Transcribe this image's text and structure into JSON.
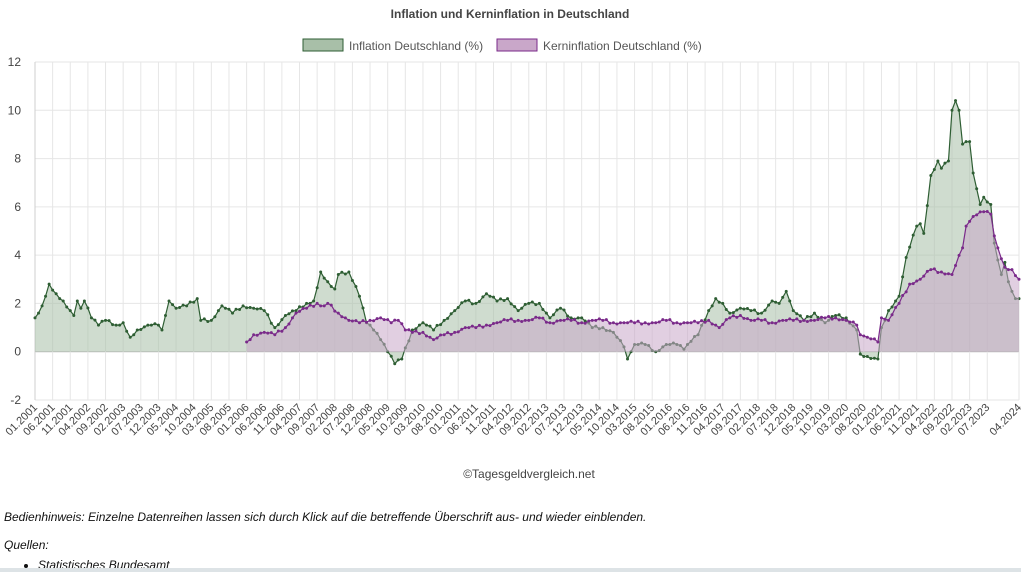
{
  "page": {
    "hint": "Bedienhinweis: Einzelne Datenreihen lassen sich durch Klick auf die betreffende Überschrift aus- und wieder einblenden.",
    "sources_label": "Quellen:",
    "sources": [
      "Statistisches Bundesamt"
    ]
  },
  "chart_data": {
    "type": "area",
    "title": "Inflation und Kerninflation in Deutschland",
    "credit": "©Tagesgeldvergleich.net",
    "legend_position": "top",
    "grid": true,
    "ylim": [
      -2,
      12
    ],
    "yticks": [
      "12",
      "10",
      "8",
      "6",
      "4",
      "2",
      "0",
      "-2"
    ],
    "x_start": "2001-01",
    "x_end": "2024-04",
    "xticks": [
      "01.2001",
      "06.2001",
      "11.2001",
      "04.2002",
      "09.2002",
      "02.2003",
      "07.2003",
      "12.2003",
      "05.2004",
      "10.2004",
      "03.2005",
      "08.2005",
      "01.2006",
      "06.2006",
      "11.2006",
      "04.2007",
      "09.2007",
      "02.2008",
      "07.2008",
      "12.2008",
      "05.2009",
      "10.2009",
      "03.2010",
      "08.2010",
      "01.2011",
      "06.2011",
      "11.2011",
      "04.2012",
      "09.2012",
      "02.2013",
      "07.2013",
      "12.2013",
      "05.2014",
      "10.2014",
      "03.2015",
      "08.2015",
      "01.2016",
      "06.2016",
      "11.2016",
      "04.2017",
      "09.2017",
      "02.2018",
      "07.2018",
      "12.2018",
      "05.2019",
      "10.2019",
      "03.2020",
      "08.2020",
      "01.2021",
      "06.2021",
      "11.2021",
      "04.2022",
      "09.2022",
      "02.2023",
      "07.2023",
      "04.2024"
    ],
    "series": [
      {
        "name": "Inflation Deutschland (%)",
        "line_color": "#2e5e33",
        "fill_color": "#a8bfa8",
        "knots": [
          [
            "2001-01",
            1.4
          ],
          [
            "2001-03",
            1.9
          ],
          [
            "2001-05",
            2.8
          ],
          [
            "2001-07",
            2.4
          ],
          [
            "2001-09",
            2.1
          ],
          [
            "2001-11",
            1.7
          ],
          [
            "2001-12",
            1.5
          ],
          [
            "2002-01",
            2.1
          ],
          [
            "2002-02",
            1.8
          ],
          [
            "2002-03",
            2.1
          ],
          [
            "2002-05",
            1.4
          ],
          [
            "2002-07",
            1.1
          ],
          [
            "2002-09",
            1.3
          ],
          [
            "2002-12",
            1.1
          ],
          [
            "2003-02",
            1.2
          ],
          [
            "2003-04",
            0.6
          ],
          [
            "2003-06",
            0.9
          ],
          [
            "2003-09",
            1.1
          ],
          [
            "2003-12",
            1.1
          ],
          [
            "2004-01",
            0.9
          ],
          [
            "2004-03",
            2.1
          ],
          [
            "2004-05",
            1.8
          ],
          [
            "2004-08",
            1.9
          ],
          [
            "2004-11",
            2.2
          ],
          [
            "2004-12",
            1.3
          ],
          [
            "2005-03",
            1.3
          ],
          [
            "2005-06",
            1.9
          ],
          [
            "2005-09",
            1.6
          ],
          [
            "2005-12",
            1.9
          ],
          [
            "2006-03",
            1.8
          ],
          [
            "2006-06",
            1.7
          ],
          [
            "2006-09",
            1.0
          ],
          [
            "2006-12",
            1.5
          ],
          [
            "2007-03",
            1.7
          ],
          [
            "2007-06",
            2.0
          ],
          [
            "2007-08",
            2.1
          ],
          [
            "2007-10",
            3.3
          ],
          [
            "2007-12",
            2.9
          ],
          [
            "2008-02",
            2.6
          ],
          [
            "2008-03",
            3.2
          ],
          [
            "2008-06",
            3.3
          ],
          [
            "2008-08",
            2.7
          ],
          [
            "2008-09",
            2.3
          ],
          [
            "2008-11",
            1.2
          ],
          [
            "2008-12",
            1.1
          ],
          [
            "2009-03",
            0.5
          ],
          [
            "2009-05",
            0.0
          ],
          [
            "2009-07",
            -0.5
          ],
          [
            "2009-09",
            -0.3
          ],
          [
            "2009-12",
            0.9
          ],
          [
            "2010-03",
            1.2
          ],
          [
            "2010-06",
            0.9
          ],
          [
            "2010-09",
            1.3
          ],
          [
            "2010-12",
            1.7
          ],
          [
            "2011-03",
            2.1
          ],
          [
            "2011-06",
            2.0
          ],
          [
            "2011-09",
            2.4
          ],
          [
            "2011-12",
            2.1
          ],
          [
            "2012-03",
            2.2
          ],
          [
            "2012-06",
            1.7
          ],
          [
            "2012-09",
            2.0
          ],
          [
            "2012-12",
            2.0
          ],
          [
            "2013-03",
            1.4
          ],
          [
            "2013-06",
            1.8
          ],
          [
            "2013-09",
            1.4
          ],
          [
            "2013-12",
            1.4
          ],
          [
            "2014-03",
            1.0
          ],
          [
            "2014-06",
            1.0
          ],
          [
            "2014-09",
            0.8
          ],
          [
            "2014-12",
            0.2
          ],
          [
            "2015-01",
            -0.3
          ],
          [
            "2015-03",
            0.3
          ],
          [
            "2015-06",
            0.3
          ],
          [
            "2015-09",
            0.0
          ],
          [
            "2015-12",
            0.3
          ],
          [
            "2016-03",
            0.3
          ],
          [
            "2016-05",
            0.1
          ],
          [
            "2016-06",
            0.3
          ],
          [
            "2016-09",
            0.7
          ],
          [
            "2016-12",
            1.7
          ],
          [
            "2017-02",
            2.2
          ],
          [
            "2017-04",
            2.0
          ],
          [
            "2017-06",
            1.6
          ],
          [
            "2017-09",
            1.8
          ],
          [
            "2017-12",
            1.7
          ],
          [
            "2018-03",
            1.6
          ],
          [
            "2018-06",
            2.1
          ],
          [
            "2018-08",
            2.0
          ],
          [
            "2018-10",
            2.5
          ],
          [
            "2018-12",
            1.7
          ],
          [
            "2019-03",
            1.3
          ],
          [
            "2019-06",
            1.6
          ],
          [
            "2019-09",
            1.2
          ],
          [
            "2019-12",
            1.5
          ],
          [
            "2020-03",
            1.4
          ],
          [
            "2020-06",
            0.9
          ],
          [
            "2020-07",
            -0.1
          ],
          [
            "2020-09",
            -0.2
          ],
          [
            "2020-12",
            -0.3
          ],
          [
            "2021-01",
            1.0
          ],
          [
            "2021-03",
            1.7
          ],
          [
            "2021-06",
            2.3
          ],
          [
            "2021-08",
            3.9
          ],
          [
            "2021-11",
            5.2
          ],
          [
            "2021-12",
            5.3
          ],
          [
            "2022-01",
            4.9
          ],
          [
            "2022-03",
            7.3
          ],
          [
            "2022-05",
            7.9
          ],
          [
            "2022-06",
            7.6
          ],
          [
            "2022-08",
            7.9
          ],
          [
            "2022-09",
            10.0
          ],
          [
            "2022-10",
            10.4
          ],
          [
            "2022-11",
            10.0
          ],
          [
            "2022-12",
            8.6
          ],
          [
            "2023-01",
            8.7
          ],
          [
            "2023-02",
            8.7
          ],
          [
            "2023-03",
            7.4
          ],
          [
            "2023-05",
            6.1
          ],
          [
            "2023-06",
            6.4
          ],
          [
            "2023-07",
            6.2
          ],
          [
            "2023-08",
            6.1
          ],
          [
            "2023-09",
            4.5
          ],
          [
            "2023-10",
            3.8
          ],
          [
            "2023-11",
            3.2
          ],
          [
            "2023-12",
            3.7
          ],
          [
            "2024-01",
            2.9
          ],
          [
            "2024-02",
            2.5
          ],
          [
            "2024-03",
            2.2
          ],
          [
            "2024-04",
            2.2
          ]
        ]
      },
      {
        "name": "Kerninflation Deutschland (%)",
        "line_color": "#7a2a8a",
        "fill_color": "#c9a7c9",
        "knots": [
          [
            "2006-01",
            0.4
          ],
          [
            "2006-03",
            0.7
          ],
          [
            "2006-06",
            0.8
          ],
          [
            "2006-09",
            0.7
          ],
          [
            "2006-12",
            1.0
          ],
          [
            "2007-03",
            1.6
          ],
          [
            "2007-06",
            1.8
          ],
          [
            "2007-09",
            2.0
          ],
          [
            "2007-11",
            1.9
          ],
          [
            "2007-12",
            2.0
          ],
          [
            "2008-03",
            1.6
          ],
          [
            "2008-06",
            1.3
          ],
          [
            "2008-09",
            1.2
          ],
          [
            "2008-12",
            1.3
          ],
          [
            "2009-03",
            1.4
          ],
          [
            "2009-06",
            1.2
          ],
          [
            "2009-08",
            1.3
          ],
          [
            "2009-10",
            0.9
          ],
          [
            "2009-12",
            0.8
          ],
          [
            "2010-03",
            0.8
          ],
          [
            "2010-06",
            0.5
          ],
          [
            "2010-09",
            0.7
          ],
          [
            "2010-12",
            0.8
          ],
          [
            "2011-03",
            1.0
          ],
          [
            "2011-06",
            1.0
          ],
          [
            "2011-09",
            1.1
          ],
          [
            "2011-12",
            1.2
          ],
          [
            "2012-03",
            1.3
          ],
          [
            "2012-06",
            1.3
          ],
          [
            "2012-09",
            1.3
          ],
          [
            "2012-12",
            1.4
          ],
          [
            "2013-03",
            1.2
          ],
          [
            "2013-06",
            1.3
          ],
          [
            "2013-09",
            1.3
          ],
          [
            "2013-12",
            1.2
          ],
          [
            "2014-03",
            1.3
          ],
          [
            "2014-06",
            1.3
          ],
          [
            "2014-09",
            1.2
          ],
          [
            "2014-12",
            1.2
          ],
          [
            "2015-03",
            1.2
          ],
          [
            "2015-06",
            1.2
          ],
          [
            "2015-09",
            1.2
          ],
          [
            "2015-12",
            1.3
          ],
          [
            "2016-03",
            1.2
          ],
          [
            "2016-06",
            1.2
          ],
          [
            "2016-09",
            1.2
          ],
          [
            "2016-12",
            1.3
          ],
          [
            "2017-03",
            1.0
          ],
          [
            "2017-06",
            1.4
          ],
          [
            "2017-09",
            1.5
          ],
          [
            "2017-12",
            1.3
          ],
          [
            "2018-03",
            1.3
          ],
          [
            "2018-06",
            1.2
          ],
          [
            "2018-09",
            1.3
          ],
          [
            "2018-12",
            1.3
          ],
          [
            "2019-03",
            1.3
          ],
          [
            "2019-06",
            1.3
          ],
          [
            "2019-09",
            1.4
          ],
          [
            "2019-12",
            1.4
          ],
          [
            "2020-03",
            1.3
          ],
          [
            "2020-06",
            1.1
          ],
          [
            "2020-07",
            0.7
          ],
          [
            "2020-09",
            0.6
          ],
          [
            "2020-12",
            0.4
          ],
          [
            "2021-01",
            1.4
          ],
          [
            "2021-03",
            1.3
          ],
          [
            "2021-06",
            2.0
          ],
          [
            "2021-09",
            2.8
          ],
          [
            "2021-12",
            3.0
          ],
          [
            "2022-03",
            3.4
          ],
          [
            "2022-06",
            3.3
          ],
          [
            "2022-09",
            3.2
          ],
          [
            "2022-12",
            4.3
          ],
          [
            "2023-01",
            5.2
          ],
          [
            "2023-03",
            5.6
          ],
          [
            "2023-06",
            5.8
          ],
          [
            "2023-08",
            5.7
          ],
          [
            "2023-09",
            4.8
          ],
          [
            "2023-10",
            4.3
          ],
          [
            "2023-12",
            3.5
          ],
          [
            "2024-02",
            3.4
          ],
          [
            "2024-04",
            3.0
          ]
        ]
      }
    ]
  }
}
